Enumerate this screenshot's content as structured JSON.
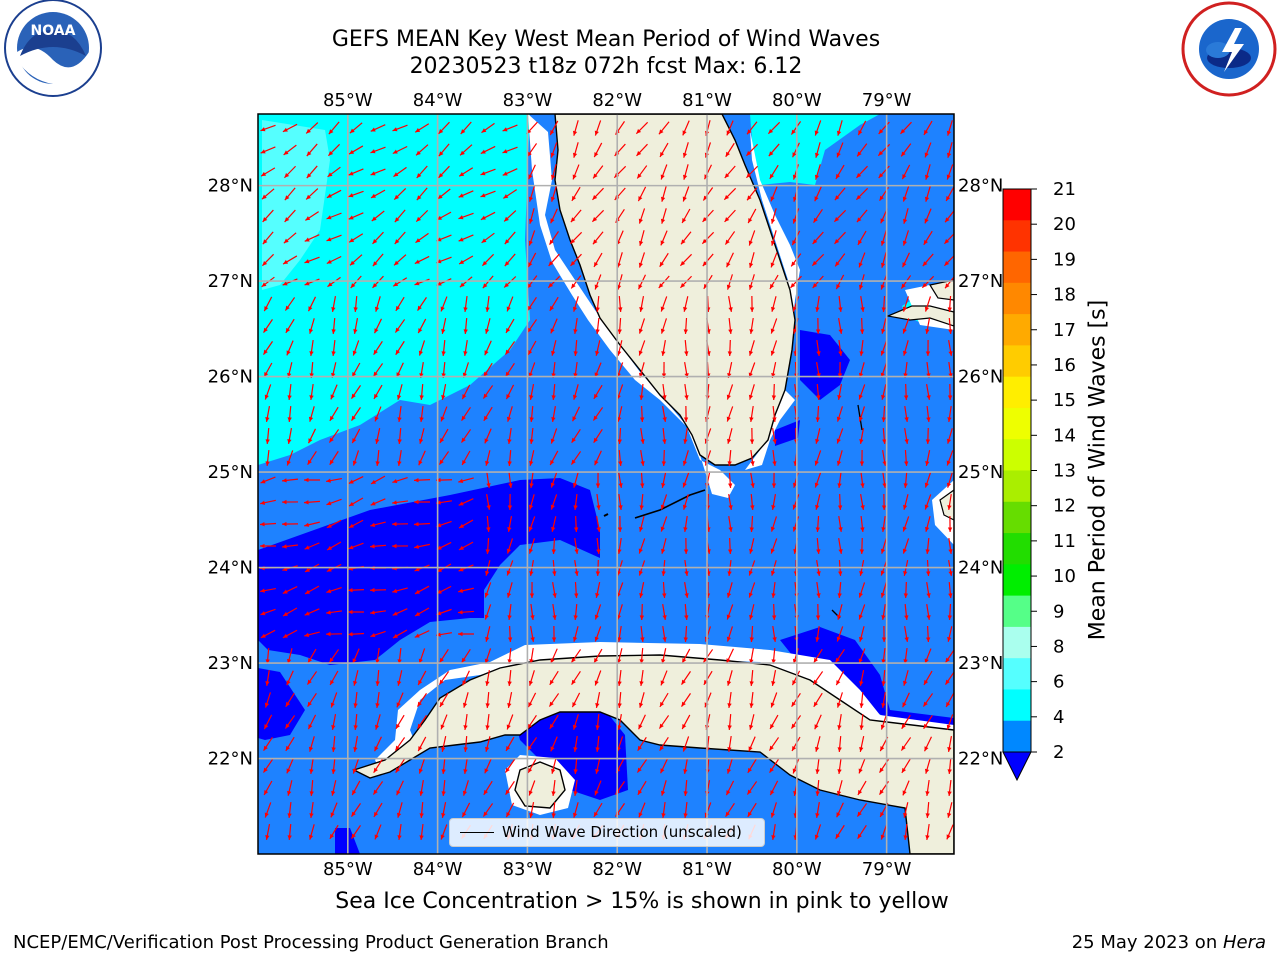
{
  "title_line1": "GEFS MEAN Key West Mean Period of Wind Waves",
  "title_line2": "20230523 t18z 072h fcst   Max: 6.12",
  "lon_labels": [
    "85°W",
    "84°W",
    "83°W",
    "82°W",
    "81°W",
    "80°W",
    "79°W"
  ],
  "lat_labels": [
    "28°N",
    "27°N",
    "26°N",
    "25°N",
    "24°N",
    "23°N",
    "22°N"
  ],
  "colorbar": {
    "label": "Mean Period of Wind Waves [s]",
    "ticks": [
      "21",
      "20",
      "19",
      "18",
      "17",
      "16",
      "15",
      "14",
      "13",
      "12",
      "11",
      "10",
      "9",
      "8",
      "6",
      "4",
      "2"
    ],
    "colors": [
      "#ff0000",
      "#ff3300",
      "#ff6600",
      "#ff8800",
      "#ffaa00",
      "#ffcc00",
      "#ffee00",
      "#eeff00",
      "#ccff00",
      "#aaee00",
      "#66dd00",
      "#22dd00",
      "#00ee00",
      "#55ff88",
      "#aaffee",
      "#55ffff",
      "#00ffff",
      "#0088ff",
      "#0000ff"
    ]
  },
  "legend_label": "Wind Wave Direction (unscaled)",
  "ice_note": "Sea Ice Concentration > 15% is shown in pink to yellow",
  "footer_left": "NCEP/EMC/Verification Post Processing Product Generation Branch",
  "footer_date": "25 May 2023 on ",
  "footer_host": "Hera",
  "logo_left_text": "NOAA",
  "map_extent": {
    "lon_min": -86.0,
    "lon_max": -78.25,
    "lat_min": 21.0,
    "lat_max": 28.75
  },
  "colors": {
    "land": "#efefdc",
    "ocean_base": "#1e82ff",
    "arrow": "#ff0000",
    "grid": "#b0b0b0"
  }
}
